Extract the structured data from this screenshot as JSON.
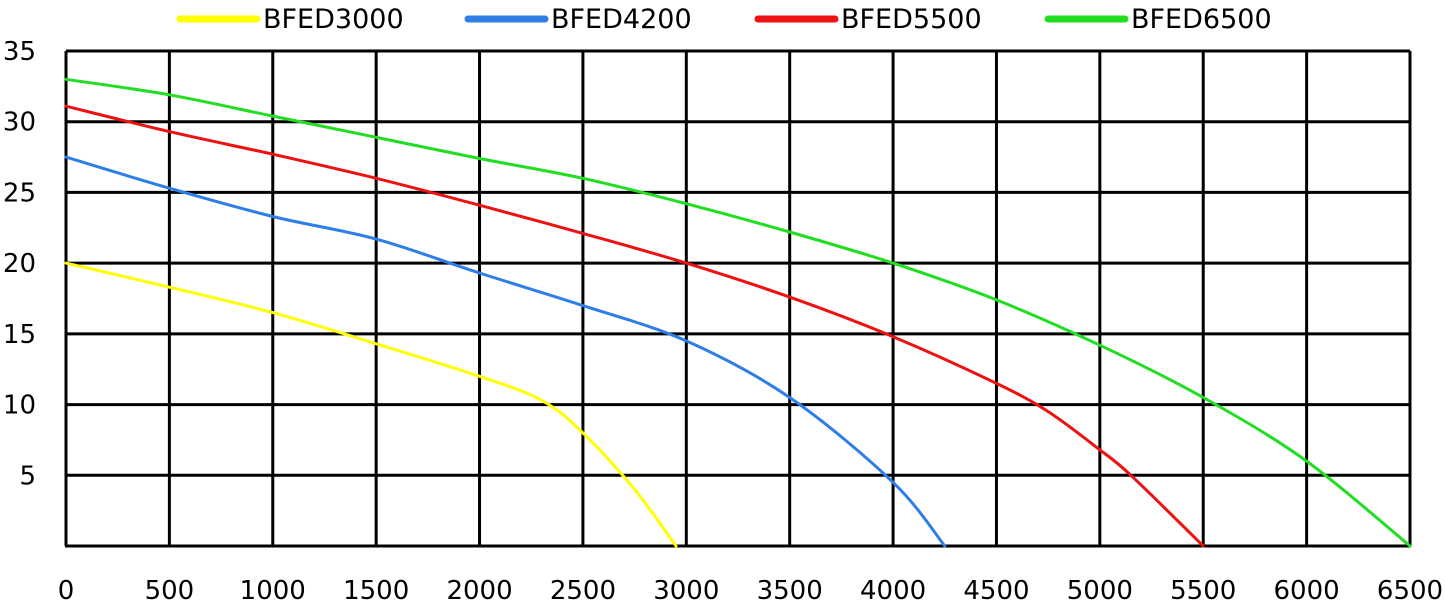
{
  "chart_data": {
    "type": "line",
    "title": "",
    "xlabel": "",
    "ylabel": "",
    "xlim": [
      0,
      6500
    ],
    "ylim": [
      0,
      35
    ],
    "xticks": [
      0,
      500,
      1000,
      1500,
      2000,
      2500,
      3000,
      3500,
      4000,
      4500,
      5000,
      5500,
      6000,
      6500
    ],
    "yticks": [
      5,
      10,
      15,
      20,
      25,
      30,
      35
    ],
    "grid": true,
    "legend_position": "top",
    "series": [
      {
        "name": "BFED3000",
        "color": "#ffff00",
        "x": [
          0,
          500,
          1000,
          1500,
          2000,
          2300,
          2500,
          2750,
          2950
        ],
        "y": [
          20,
          18.3,
          16.5,
          14.3,
          12,
          10.3,
          8,
          4,
          0
        ]
      },
      {
        "name": "BFED4200",
        "color": "#2f7ee8",
        "x": [
          0,
          500,
          1000,
          1500,
          2000,
          2500,
          3000,
          3500,
          4000,
          4250
        ],
        "y": [
          27.5,
          25.3,
          23.3,
          21.7,
          19.3,
          17,
          14.5,
          10.5,
          4.5,
          0
        ]
      },
      {
        "name": "BFED5500",
        "color": "#ee1111",
        "x": [
          0,
          500,
          1000,
          1500,
          2000,
          2500,
          3000,
          3500,
          4000,
          4500,
          4750,
          5000,
          5150,
          5500
        ],
        "y": [
          31.1,
          29.3,
          27.7,
          26,
          24.1,
          22.1,
          20,
          17.6,
          14.8,
          11.5,
          9.5,
          6.8,
          5,
          0
        ]
      },
      {
        "name": "BFED6500",
        "color": "#22dd22",
        "x": [
          0,
          500,
          1000,
          1500,
          2000,
          2500,
          3000,
          3500,
          4000,
          4500,
          5000,
          5500,
          6000,
          6500
        ],
        "y": [
          33,
          31.9,
          30.4,
          28.9,
          27.4,
          26,
          24.2,
          22.2,
          20,
          17.4,
          14.2,
          10.5,
          6,
          0
        ]
      }
    ]
  }
}
